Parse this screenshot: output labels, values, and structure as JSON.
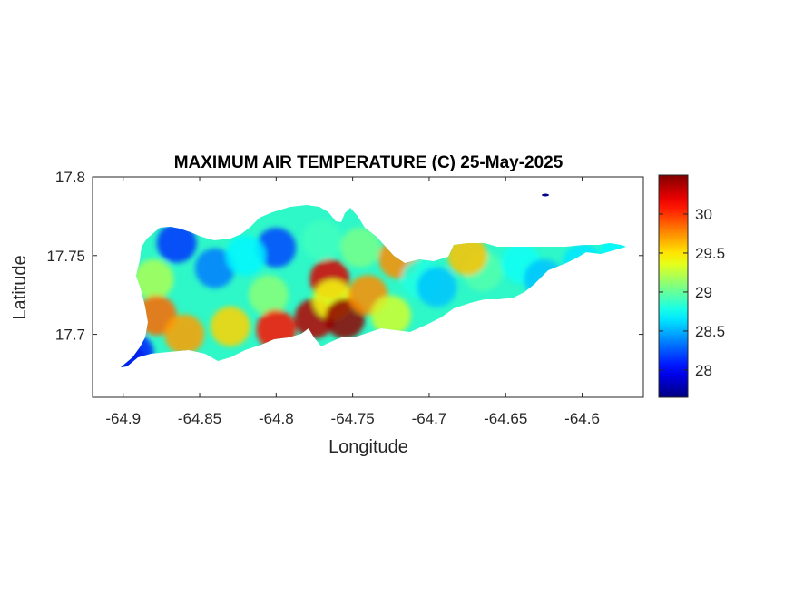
{
  "figure": {
    "title": "MAXIMUM AIR TEMPERATURE (C) 25-May-2025",
    "xlabel": "Longitude",
    "ylabel": "Latitude"
  },
  "chart_data": {
    "type": "heatmap",
    "title": "MAXIMUM AIR TEMPERATURE (C) 25-May-2025",
    "xlabel": "Longitude",
    "ylabel": "Latitude",
    "xlim": [
      -64.92,
      -64.56
    ],
    "ylim": [
      17.66,
      17.8
    ],
    "xticks": [
      "-64.9",
      "-64.85",
      "-64.8",
      "-64.75",
      "-64.7",
      "-64.65",
      "-64.6"
    ],
    "xtick_values": [
      -64.9,
      -64.85,
      -64.8,
      -64.75,
      -64.7,
      -64.65,
      -64.6
    ],
    "yticks": [
      "17.7",
      "17.75",
      "17.8"
    ],
    "ytick_values": [
      17.7,
      17.75,
      17.8
    ],
    "colorbar": {
      "colormap": "jet",
      "range": [
        27.65,
        30.5
      ],
      "ticks": [
        "28",
        "28.5",
        "29",
        "29.5",
        "30"
      ],
      "tick_values": [
        28,
        28.5,
        29,
        29.5,
        30
      ]
    },
    "grid": false,
    "temperature_points": [
      {
        "lon": -64.865,
        "lat": 17.758,
        "temp": 28.15
      },
      {
        "lon": -64.84,
        "lat": 17.742,
        "temp": 28.35
      },
      {
        "lon": -64.8,
        "lat": 17.755,
        "temp": 28.2
      },
      {
        "lon": -64.82,
        "lat": 17.75,
        "temp": 28.7
      },
      {
        "lon": -64.88,
        "lat": 17.735,
        "temp": 29.2
      },
      {
        "lon": -64.878,
        "lat": 17.712,
        "temp": 29.85
      },
      {
        "lon": -64.86,
        "lat": 17.7,
        "temp": 29.7
      },
      {
        "lon": -64.83,
        "lat": 17.705,
        "temp": 29.55
      },
      {
        "lon": -64.805,
        "lat": 17.725,
        "temp": 29.1
      },
      {
        "lon": -64.8,
        "lat": 17.703,
        "temp": 30.1
      },
      {
        "lon": -64.775,
        "lat": 17.71,
        "temp": 30.35
      },
      {
        "lon": -64.765,
        "lat": 17.735,
        "temp": 30.25
      },
      {
        "lon": -64.763,
        "lat": 17.722,
        "temp": 29.4
      },
      {
        "lon": -64.755,
        "lat": 17.71,
        "temp": 30.45
      },
      {
        "lon": -64.74,
        "lat": 17.725,
        "temp": 29.75
      },
      {
        "lon": -64.77,
        "lat": 17.76,
        "temp": 28.9
      },
      {
        "lon": -64.745,
        "lat": 17.755,
        "temp": 29.05
      },
      {
        "lon": -64.72,
        "lat": 17.748,
        "temp": 29.75
      },
      {
        "lon": -64.705,
        "lat": 17.735,
        "temp": 28.8
      },
      {
        "lon": -64.695,
        "lat": 17.73,
        "temp": 28.55
      },
      {
        "lon": -64.725,
        "lat": 17.712,
        "temp": 29.3
      },
      {
        "lon": -64.665,
        "lat": 17.74,
        "temp": 28.95
      },
      {
        "lon": -64.675,
        "lat": 17.75,
        "temp": 29.6
      },
      {
        "lon": -64.64,
        "lat": 17.745,
        "temp": 28.75
      },
      {
        "lon": -64.625,
        "lat": 17.735,
        "temp": 28.55
      },
      {
        "lon": -64.6,
        "lat": 17.745,
        "temp": 28.65
      },
      {
        "lon": -64.575,
        "lat": 17.754,
        "temp": 28.7
      },
      {
        "lon": -64.898,
        "lat": 17.682,
        "temp": 27.7
      },
      {
        "lon": -64.893,
        "lat": 17.688,
        "temp": 28.1
      }
    ]
  }
}
